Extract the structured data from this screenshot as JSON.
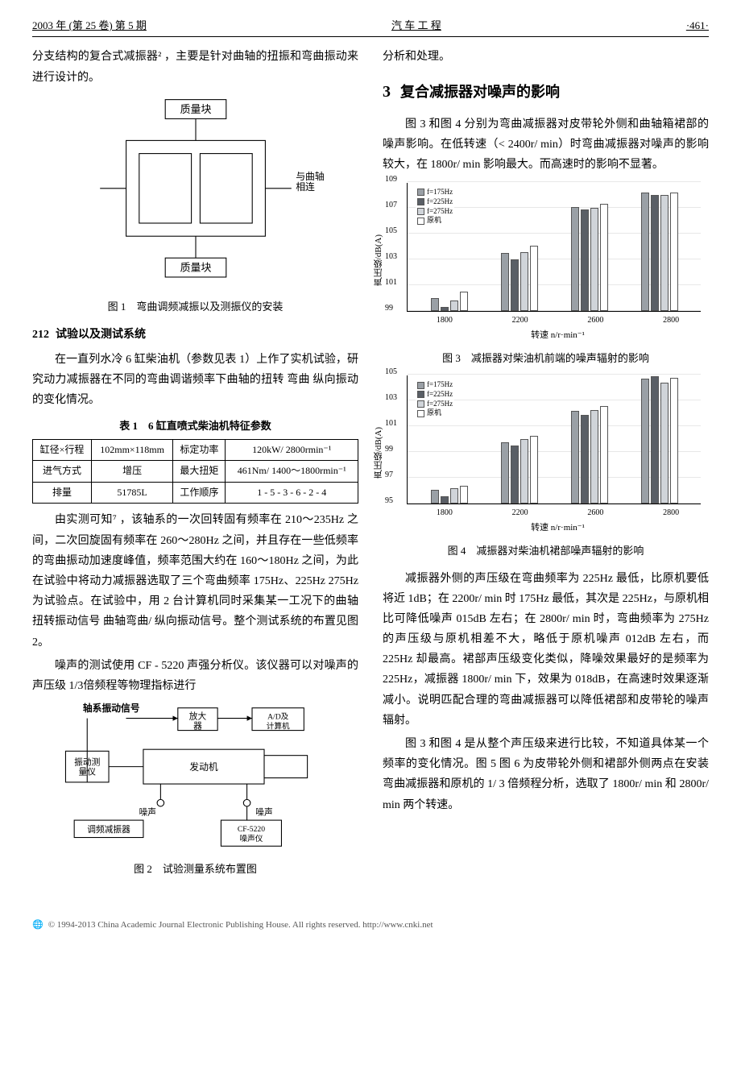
{
  "header": {
    "left": "2003 年 (第 25 卷) 第 5 期",
    "center": "汽 车 工 程",
    "right": "·461·"
  },
  "col1": {
    "para1": "分支结构的复合式减振器² ，主要是针对曲轴的扭振和弯曲振动来进行设计的。",
    "fig1_caption": "图 1　弯曲调频减振以及测振仪的安装",
    "fig1_labels": {
      "top": "质量块",
      "right": "与曲轴相连",
      "bottom": "质量块"
    },
    "sub_num": "212",
    "sub_title": "试验以及测试系统",
    "para2": "在一直列水冷 6 缸柴油机（参数见表 1）上作了实机试验，研究动力减振器在不同的弯曲调谐频率下曲轴的扭转 弯曲 纵向振动的变化情况。",
    "table_title": "表 1　6 缸直喷式柴油机特征参数",
    "table": {
      "rows": [
        [
          "缸径×行程",
          "102mm×118mm",
          "标定功率",
          "120kW/ 2800rmin⁻¹"
        ],
        [
          "进气方式",
          "增压",
          "最大扭矩",
          "461Nm/\n1400～1800rmin⁻¹"
        ],
        [
          "排量",
          "51785L",
          "工作顺序",
          "1 - 5 - 3 - 6 - 2 - 4"
        ]
      ]
    },
    "para3": "由实测可知⁷ ，该轴系的一次回转固有频率在 210～235Hz 之间，二次回旋固有频率在 260～280Hz 之间，并且存在一些低频率的弯曲振动加速度峰值，频率范围大约在 160～180Hz 之间，为此在试验中将动力减振器选取了三个弯曲频率 175Hz、225Hz 275Hz 为试验点。在试验中，用 2 台计算机同时采集某一工况下的曲轴扭转振动信号 曲轴弯曲/ 纵向振动信号。整个测试系统的布置见图 2。",
    "para4": "噪声的测试使用 CF - 5220 声强分析仪。该仪器可以对噪声的声压级 1/3倍频程等物理指标进行",
    "fig2_caption": "图 2　试验测量系统布置图",
    "fig2_labels": {
      "a": "轴系振动信号",
      "b": "放大器",
      "c": "A/D及计算机",
      "d": "振动测量仪",
      "e": "发动机",
      "f": "噪声",
      "g": "调频减振器",
      "h": "CF-5220噪声仪"
    }
  },
  "col2": {
    "para1": "分析和处理。",
    "section_num": "3",
    "section_title": "复合减振器对噪声的影响",
    "para2": "图 3 和图 4 分别为弯曲减振器对皮带轮外侧和曲轴箱裙部的噪声影响。在低转速（< 2400r/ min）时弯曲减振器对噪声的影响较大，在 1800r/ min 影响最大。而高速时的影响不显著。",
    "legend": [
      "f=175Hz",
      "f=225Hz",
      "f=275Hz",
      "原机"
    ],
    "legend_colors": [
      "#9aa0a6",
      "#5a5f66",
      "#d0d4d9",
      "#ffffff"
    ],
    "chart3": {
      "ylabel": "声压级/dB(A)",
      "ymin": 99,
      "ymax": 109,
      "ytick": 2,
      "xlabel": "转速 n/r·min⁻¹",
      "categories": [
        "1800",
        "2200",
        "2600",
        "2800"
      ],
      "values": [
        [
          100.0,
          99.3,
          99.8,
          100.5
        ],
        [
          103.5,
          103.0,
          103.6,
          104.1
        ],
        [
          107.1,
          106.9,
          107.0,
          107.3
        ],
        [
          108.2,
          108.0,
          108.0,
          108.2
        ]
      ],
      "grid_color": "#e8e8e8"
    },
    "fig3_caption": "图 3　减振器对柴油机前端的噪声辐射的影响",
    "chart4": {
      "ylabel": "声压级/dB(A)",
      "ymin": 95,
      "ymax": 105,
      "ytick": 2,
      "xlabel": "转速 n/r·min⁻¹",
      "categories": [
        "1800",
        "2200",
        "2600",
        "2800"
      ],
      "values": [
        [
          96.1,
          95.6,
          96.2,
          96.4
        ],
        [
          99.8,
          99.5,
          100.0,
          100.3
        ],
        [
          102.2,
          101.9,
          102.3,
          102.6
        ],
        [
          104.7,
          104.9,
          104.4,
          104.8
        ]
      ],
      "grid_color": "#e8e8e8"
    },
    "fig4_caption": "图 4　减振器对柴油机裙部噪声辐射的影响",
    "para3": "减振器外侧的声压级在弯曲频率为 225Hz 最低，比原机要低将近 1dB；在 2200r/ min 时 175Hz 最低，其次是 225Hz，与原机相比可降低噪声 015dB 左右；在 2800r/ min 时，弯曲频率为 275Hz 的声压级与原机相差不大，略低于原机噪声 012dB 左右，而 225Hz 却最高。裙部声压级变化类似，降噪效果最好的是频率为 225Hz，减振器 1800r/ min 下，效果为 018dB，在高速时效果逐渐减小。说明匹配合理的弯曲减振器可以降低裙部和皮带轮的噪声辐射。",
    "para4": "图 3 和图 4 是从整个声压级来进行比较，不知道具体某一个频率的变化情况。图 5 图 6 为皮带轮外侧和裙部外侧两点在安装弯曲减振器和原机的 1/ 3 倍频程分析，选取了 1800r/ min 和 2800r/ min 两个转速。"
  },
  "footer": "© 1994-2013 China Academic Journal Electronic Publishing House. All rights reserved.    http://www.cnki.net"
}
